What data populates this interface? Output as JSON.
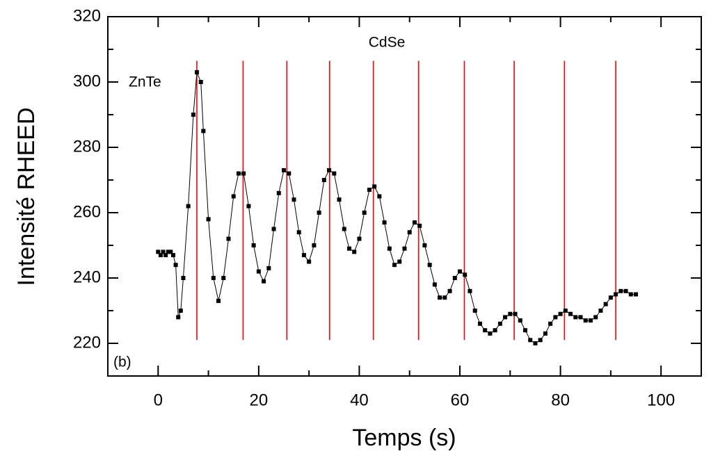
{
  "chart_data": {
    "type": "line",
    "x_label": "Temps (s)",
    "y_label": "Intensité RHEED",
    "annotations": [
      "ZnTe",
      "CdSe",
      "(b)"
    ],
    "xlim": [
      -10,
      108
    ],
    "ylim": [
      210,
      320
    ],
    "xticks": [
      0,
      20,
      40,
      60,
      80,
      100
    ],
    "yticks": [
      220,
      240,
      260,
      280,
      300,
      320
    ],
    "series": [
      {
        "color": "#000000",
        "x": [
          0,
          0.5,
          1,
          1.5,
          2,
          2.5,
          3,
          3.5,
          4,
          4.5,
          5,
          6,
          7,
          7.7,
          8.5,
          9,
          10,
          11,
          12,
          13,
          14,
          15,
          16,
          17,
          18,
          19,
          20,
          21,
          22,
          23,
          24,
          25,
          26,
          27,
          28,
          29,
          30,
          31,
          32,
          33,
          34,
          35,
          36,
          37,
          38,
          39,
          40,
          41,
          42,
          43,
          44,
          45,
          46,
          47,
          48,
          49,
          50,
          51,
          52,
          53,
          54,
          55,
          56,
          57,
          58,
          59,
          60,
          61,
          62,
          63,
          64,
          65,
          66,
          67,
          68,
          69,
          70,
          71,
          72,
          73,
          74,
          75,
          76,
          77,
          78,
          79,
          80,
          81,
          82,
          83,
          84,
          85,
          86,
          87,
          88,
          89,
          90,
          91,
          92,
          93,
          94,
          95
        ],
        "values": [
          248,
          247,
          248,
          247,
          248,
          248,
          247,
          244,
          228,
          230,
          240,
          262,
          290,
          303,
          300,
          285,
          258,
          240,
          233,
          240,
          252,
          265,
          272,
          272,
          262,
          250,
          242,
          239,
          243,
          255,
          266,
          273,
          272,
          264,
          254,
          247,
          245,
          250,
          260,
          270,
          273,
          272,
          264,
          255,
          249,
          248,
          252,
          260,
          267,
          268,
          265,
          257,
          249,
          244,
          245,
          249,
          254,
          257,
          256,
          250,
          244,
          238,
          234,
          234,
          236,
          240,
          242,
          241,
          236,
          230,
          226,
          224,
          223,
          224,
          226,
          228,
          229,
          229,
          227,
          224,
          221,
          220,
          221,
          223,
          226,
          228,
          229,
          230,
          229,
          228,
          228,
          227,
          227,
          228,
          230,
          232,
          234,
          235,
          236,
          236,
          235,
          235
        ]
      }
    ],
    "vlines": {
      "color": "#ff0000",
      "x": [
        7.7,
        16.9,
        25.6,
        34.1,
        42.8,
        51.8,
        60.9,
        70.8,
        80.8,
        91.0
      ],
      "y_range": [
        221,
        306.5
      ]
    }
  }
}
